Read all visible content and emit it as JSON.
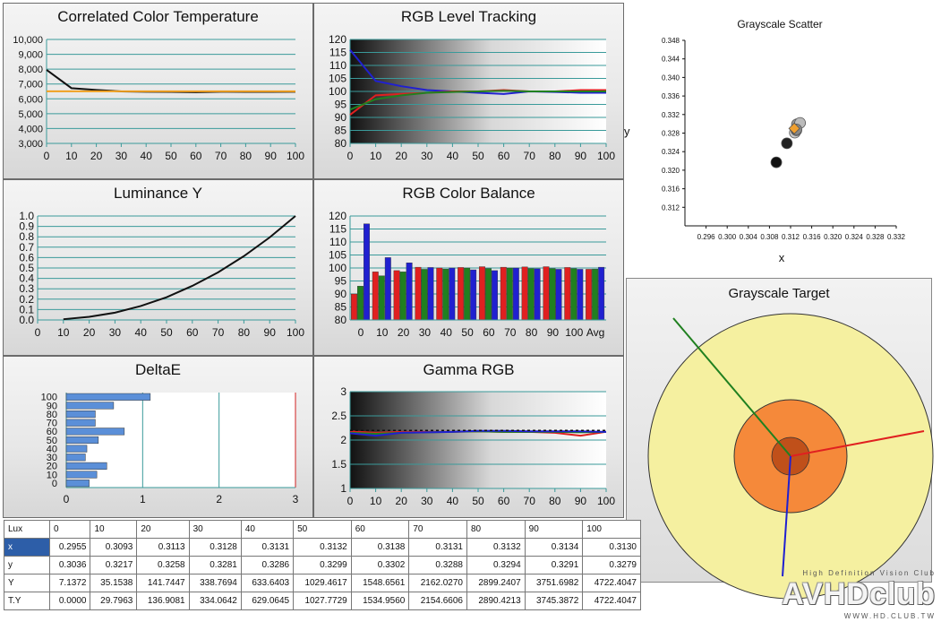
{
  "chart_data": [
    {
      "id": "cct",
      "type": "line",
      "title": "Correlated Color Temperature",
      "x": [
        0,
        10,
        20,
        30,
        40,
        50,
        60,
        70,
        80,
        90,
        100
      ],
      "xlim": [
        0,
        100
      ],
      "ylim": [
        3000,
        10000
      ],
      "yticks": [
        "10,000",
        "9,000",
        "8,000",
        "7,000",
        "6,000",
        "5,000",
        "4,000",
        "3,000"
      ],
      "xticks": [
        "0",
        "10",
        "20",
        "30",
        "40",
        "50",
        "60",
        "70",
        "80",
        "90",
        "100"
      ],
      "series": [
        {
          "color": "#111111",
          "values": [
            7950,
            6720,
            6600,
            6500,
            6480,
            6470,
            6450,
            6480,
            6470,
            6470,
            6480
          ]
        },
        {
          "color": "#f0a020",
          "values": [
            6504,
            6504,
            6504,
            6504,
            6504,
            6504,
            6504,
            6504,
            6504,
            6504,
            6504
          ]
        }
      ]
    },
    {
      "id": "rgb-tracking",
      "type": "line",
      "title": "RGB Level Tracking",
      "x": [
        0,
        10,
        20,
        30,
        40,
        50,
        60,
        70,
        80,
        90,
        100
      ],
      "xlim": [
        0,
        100
      ],
      "ylim": [
        80,
        120
      ],
      "yticks": [
        "120",
        "115",
        "110",
        "105",
        "100",
        "95",
        "90",
        "85",
        "80"
      ],
      "xticks": [
        "0",
        "10",
        "20",
        "30",
        "40",
        "50",
        "60",
        "70",
        "80",
        "90",
        "100"
      ],
      "series": [
        {
          "color": "#2020d0",
          "values": [
            116,
            104,
            102,
            100.5,
            100,
            99.5,
            99,
            100,
            99.8,
            99.5,
            99.5
          ]
        },
        {
          "color": "#e02020",
          "values": [
            91,
            98.5,
            99,
            99.5,
            100,
            100,
            100.5,
            100,
            100,
            100.5,
            100.5
          ]
        },
        {
          "color": "#208020",
          "values": [
            93,
            97,
            98.5,
            99.5,
            99.8,
            100,
            100.2,
            100,
            100,
            100,
            100
          ]
        }
      ]
    },
    {
      "id": "luminance",
      "type": "line",
      "title": "Luminance Y",
      "x": [
        10,
        20,
        30,
        40,
        50,
        60,
        70,
        80,
        90,
        100
      ],
      "xlim": [
        0,
        100
      ],
      "ylim": [
        0,
        1
      ],
      "yticks": [
        "1.0",
        "0.9",
        "0.8",
        "0.7",
        "0.6",
        "0.5",
        "0.4",
        "0.3",
        "0.2",
        "0.1",
        "0.0"
      ],
      "xticks": [
        "0",
        "10",
        "20",
        "30",
        "40",
        "50",
        "60",
        "70",
        "80",
        "90",
        "100"
      ],
      "series": [
        {
          "color": "#111111",
          "values": [
            0.007,
            0.03,
            0.07,
            0.134,
            0.218,
            0.328,
            0.458,
            0.614,
            0.794,
            1.0
          ]
        }
      ]
    },
    {
      "id": "rgb-balance",
      "type": "bar",
      "title": "RGB Color Balance",
      "categories": [
        "0",
        "10",
        "20",
        "30",
        "40",
        "50",
        "60",
        "70",
        "80",
        "90",
        "100",
        "Avg"
      ],
      "ylim": [
        80,
        120
      ],
      "yticks": [
        "120",
        "115",
        "110",
        "105",
        "100",
        "95",
        "90",
        "85",
        "80"
      ],
      "series": [
        {
          "color": "#e02020",
          "values": [
            90,
            98.5,
            99,
            100.3,
            100,
            100.2,
            100.5,
            100.3,
            100.4,
            100.5,
            100.2,
            99.5
          ]
        },
        {
          "color": "#208020",
          "values": [
            93,
            97,
            98.5,
            99.5,
            99.6,
            100,
            99.8,
            100,
            99.8,
            99.8,
            99.8,
            99.6
          ]
        },
        {
          "color": "#2020d0",
          "values": [
            117,
            104,
            102,
            100.2,
            100,
            99.3,
            99,
            100,
            99.7,
            99.5,
            99.5,
            100.3
          ]
        }
      ]
    },
    {
      "id": "deltae",
      "type": "bar",
      "orientation": "horizontal",
      "title": "DeltaE",
      "categories": [
        "0",
        "10",
        "20",
        "30",
        "40",
        "50",
        "60",
        "70",
        "80",
        "90",
        "100"
      ],
      "values": [
        0.3,
        0.4,
        0.53,
        0.25,
        0.27,
        0.42,
        0.76,
        0.38,
        0.38,
        0.62,
        1.1
      ],
      "xlim": [
        0,
        3
      ],
      "xticks": [
        "0",
        "1",
        "2",
        "3"
      ],
      "color": "#5b8fd8"
    },
    {
      "id": "gamma",
      "type": "line",
      "title": "Gamma RGB",
      "x": [
        0,
        10,
        20,
        30,
        40,
        50,
        60,
        70,
        80,
        90,
        100
      ],
      "xlim": [
        0,
        100
      ],
      "ylim": [
        1,
        3
      ],
      "yticks": [
        "3",
        "2.5",
        "2",
        "1.5",
        "1"
      ],
      "xticks": [
        "0",
        "10",
        "20",
        "30",
        "40",
        "50",
        "60",
        "70",
        "80",
        "90",
        "100"
      ],
      "series": [
        {
          "color": "#e02020",
          "values": [
            2.18,
            2.15,
            2.17,
            2.17,
            2.17,
            2.18,
            2.17,
            2.17,
            2.15,
            2.09,
            2.17
          ]
        },
        {
          "color": "#208020",
          "values": [
            2.15,
            2.13,
            2.15,
            2.16,
            2.17,
            2.18,
            2.17,
            2.17,
            2.17,
            2.16,
            2.17
          ]
        },
        {
          "color": "#2020d0",
          "values": [
            2.14,
            2.09,
            2.15,
            2.16,
            2.17,
            2.19,
            2.19,
            2.18,
            2.18,
            2.18,
            2.17
          ]
        },
        {
          "color": "#111111",
          "dashed": true,
          "values": [
            2.2,
            2.2,
            2.2,
            2.2,
            2.2,
            2.2,
            2.2,
            2.2,
            2.2,
            2.2,
            2.2
          ]
        }
      ]
    },
    {
      "id": "scatter",
      "type": "scatter",
      "title": "Grayscale Scatter",
      "xlabel": "x",
      "ylabel": "y",
      "xlim": [
        0.292,
        0.332
      ],
      "ylim": [
        0.308,
        0.348
      ],
      "xticks": [
        "0.296",
        "0.300",
        "0.304",
        "0.308",
        "0.312",
        "0.316",
        "0.320",
        "0.324",
        "0.328",
        "0.332"
      ],
      "yticks": [
        "0.348",
        "0.344",
        "0.340",
        "0.336",
        "0.332",
        "0.328",
        "0.324",
        "0.320",
        "0.316",
        "0.312"
      ],
      "points": [
        {
          "x": 0.3093,
          "y": 0.3217,
          "color": "#111111"
        },
        {
          "x": 0.3113,
          "y": 0.3258,
          "color": "#222222"
        },
        {
          "x": 0.3128,
          "y": 0.3281,
          "color": "#c8c8c8"
        },
        {
          "x": 0.3131,
          "y": 0.3286,
          "color": "#a0a0a0"
        },
        {
          "x": 0.3132,
          "y": 0.3299,
          "color": "#9a9a9a"
        },
        {
          "x": 0.3138,
          "y": 0.3302,
          "color": "#bbbbbb"
        },
        {
          "x": 0.3131,
          "y": 0.3288,
          "color": "#888888"
        }
      ],
      "target": {
        "x": 0.3127,
        "y": 0.329,
        "color": "#f0a030"
      }
    },
    {
      "id": "target",
      "type": "other",
      "title": "Grayscale Target"
    }
  ],
  "table": {
    "header_label": "Lux",
    "columns": [
      "0",
      "10",
      "20",
      "30",
      "40",
      "50",
      "60",
      "70",
      "80",
      "90",
      "100"
    ],
    "rows": [
      {
        "label": "x",
        "values": [
          "0.2955",
          "0.3093",
          "0.3113",
          "0.3128",
          "0.3131",
          "0.3132",
          "0.3138",
          "0.3131",
          "0.3132",
          "0.3134",
          "0.3130"
        ]
      },
      {
        "label": "y",
        "values": [
          "0.3036",
          "0.3217",
          "0.3258",
          "0.3281",
          "0.3286",
          "0.3299",
          "0.3302",
          "0.3288",
          "0.3294",
          "0.3291",
          "0.3279"
        ]
      },
      {
        "label": "Y",
        "values": [
          "7.1372",
          "35.1538",
          "141.7447",
          "338.7694",
          "633.6403",
          "1029.4617",
          "1548.6561",
          "2162.0270",
          "2899.2407",
          "3751.6982",
          "4722.4047"
        ]
      },
      {
        "label": "T.Y",
        "values": [
          "0.0000",
          "29.7963",
          "136.9081",
          "334.0642",
          "629.0645",
          "1027.7729",
          "1534.9560",
          "2154.6606",
          "2890.4213",
          "3745.3872",
          "4722.4047"
        ]
      }
    ]
  },
  "logo": {
    "text": "AVHDclub",
    "tagline": "High Definition Vision Club",
    "url": "WWW.HD.CLUB.TW"
  }
}
